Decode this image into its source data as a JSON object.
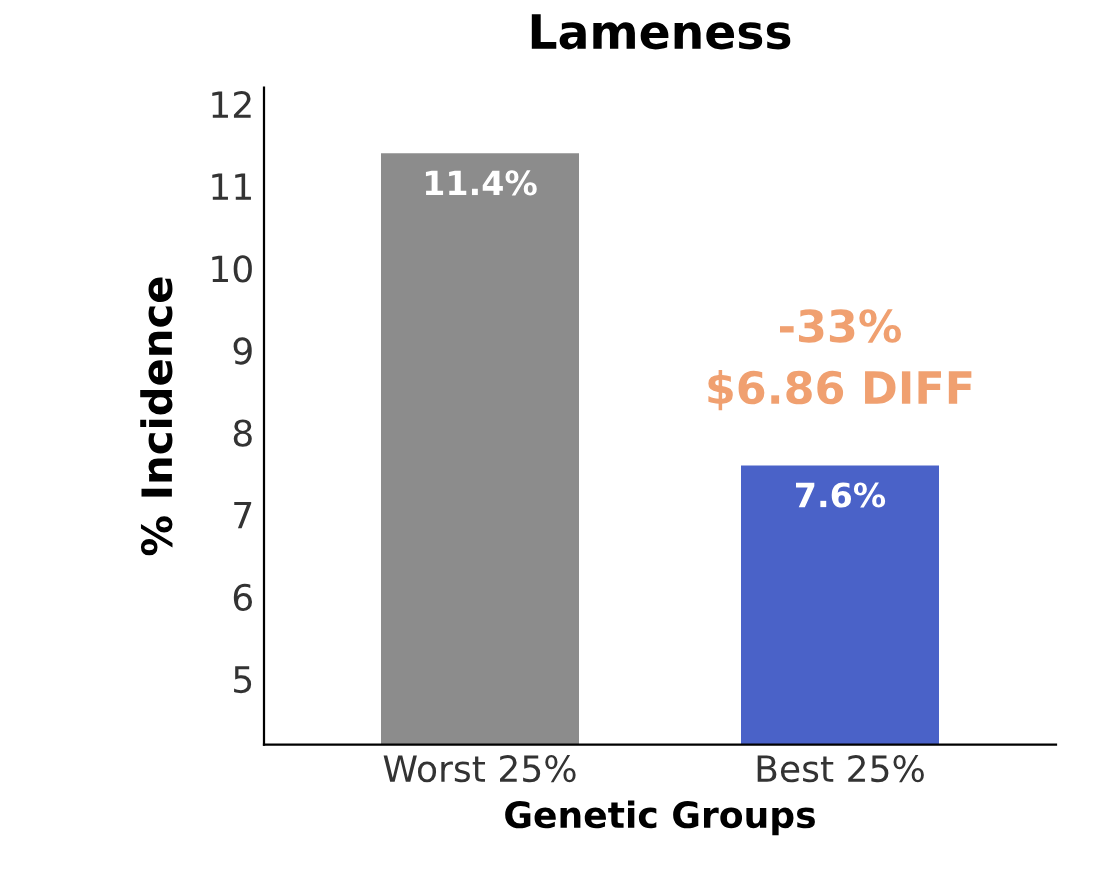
{
  "chart_data": {
    "type": "bar",
    "title": "Lameness",
    "xlabel": "Genetic Groups",
    "ylabel": "% Incidence",
    "categories": [
      "Worst 25%",
      "Best 25%"
    ],
    "values": [
      11.4,
      7.6
    ],
    "colors": [
      "#8c8c8c",
      "#4a62c8"
    ],
    "value_labels": [
      "11.4%",
      "7.6%"
    ],
    "annotations": [
      "-33%",
      "$6.86 DIFF"
    ],
    "ylim": [
      4.2,
      12.2
    ],
    "yticks": [
      5,
      6,
      7,
      8,
      9,
      10,
      11,
      12
    ],
    "grid": false,
    "legend": false
  }
}
